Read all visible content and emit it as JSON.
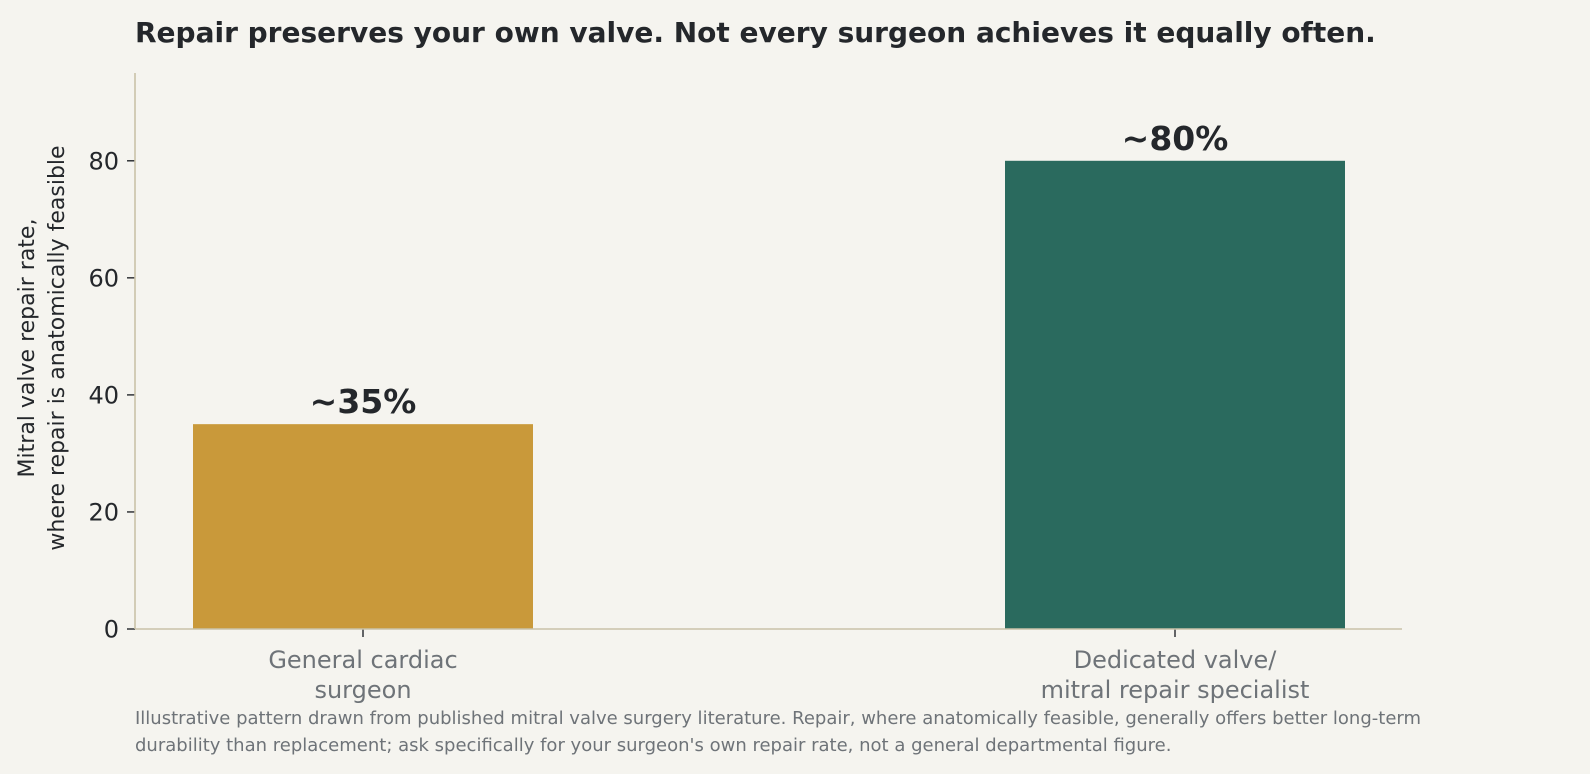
{
  "chart_data": {
    "type": "bar",
    "title": "Repair preserves your own valve. Not every surgeon achieves it equally often.",
    "ylabel_lines": [
      "Mitral valve repair rate,",
      "where repair is anatomically feasible"
    ],
    "xlabel": "",
    "categories": [
      [
        "General cardiac",
        "surgeon"
      ],
      [
        "Dedicated valve/",
        "mitral repair specialist"
      ]
    ],
    "values": [
      35,
      80
    ],
    "value_labels": [
      "~35%",
      "~80%"
    ],
    "colors": [
      "#c9993a",
      "#2a6a5e"
    ],
    "ylim": [
      0,
      95
    ],
    "yticks": [
      0,
      20,
      40,
      60,
      80
    ],
    "grid": false,
    "caption_lines": [
      "Illustrative pattern drawn from published mitral valve surgery literature. Repair, where anatomically feasible, generally offers better long-term",
      "durability than replacement; ask specifically for your surgeon's own repair rate, not a general departmental figure."
    ]
  }
}
